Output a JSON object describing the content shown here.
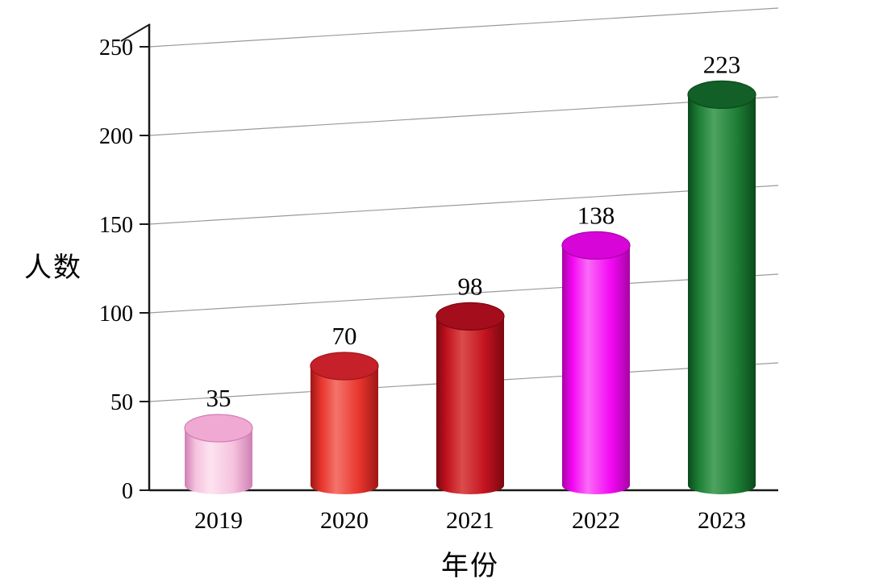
{
  "chart_data": {
    "type": "bar",
    "style": "3d-cylinder",
    "title": "",
    "xlabel": "年份",
    "ylabel": "人数",
    "categories": [
      "2019",
      "2020",
      "2021",
      "2022",
      "2023"
    ],
    "values": [
      35,
      70,
      98,
      138,
      223
    ],
    "data_labels": [
      "35",
      "70",
      "98",
      "138",
      "223"
    ],
    "ylim": [
      0,
      250
    ],
    "yticks": [
      0,
      50,
      100,
      150,
      200,
      250
    ],
    "ytick_labels": [
      "0",
      "50",
      "100",
      "150",
      "200",
      "250"
    ],
    "grid": true,
    "legend": "none",
    "colors": {
      "background": "#ffffff",
      "axis": "#1a1a1a",
      "gridline": "#9a9a9a",
      "text": "#000000",
      "bars": [
        {
          "name": "pink",
          "body": "#f6c2de",
          "shine": "#fce3f0",
          "top": "#efa9d2",
          "edge": "#cf7fb4"
        },
        {
          "name": "red",
          "body": "#e8352d",
          "shine": "#f4746a",
          "top": "#c6202a",
          "edge": "#9e1717"
        },
        {
          "name": "dark-red",
          "body": "#c2131f",
          "shine": "#da4c4c",
          "top": "#a30d1c",
          "edge": "#7c070f"
        },
        {
          "name": "magenta",
          "body": "#f408f4",
          "shine": "#fb6af7",
          "top": "#d705d7",
          "edge": "#a703a7"
        },
        {
          "name": "green",
          "body": "#1d7f35",
          "shine": "#4ea361",
          "top": "#125f27",
          "edge": "#0b4a1c"
        }
      ]
    }
  }
}
